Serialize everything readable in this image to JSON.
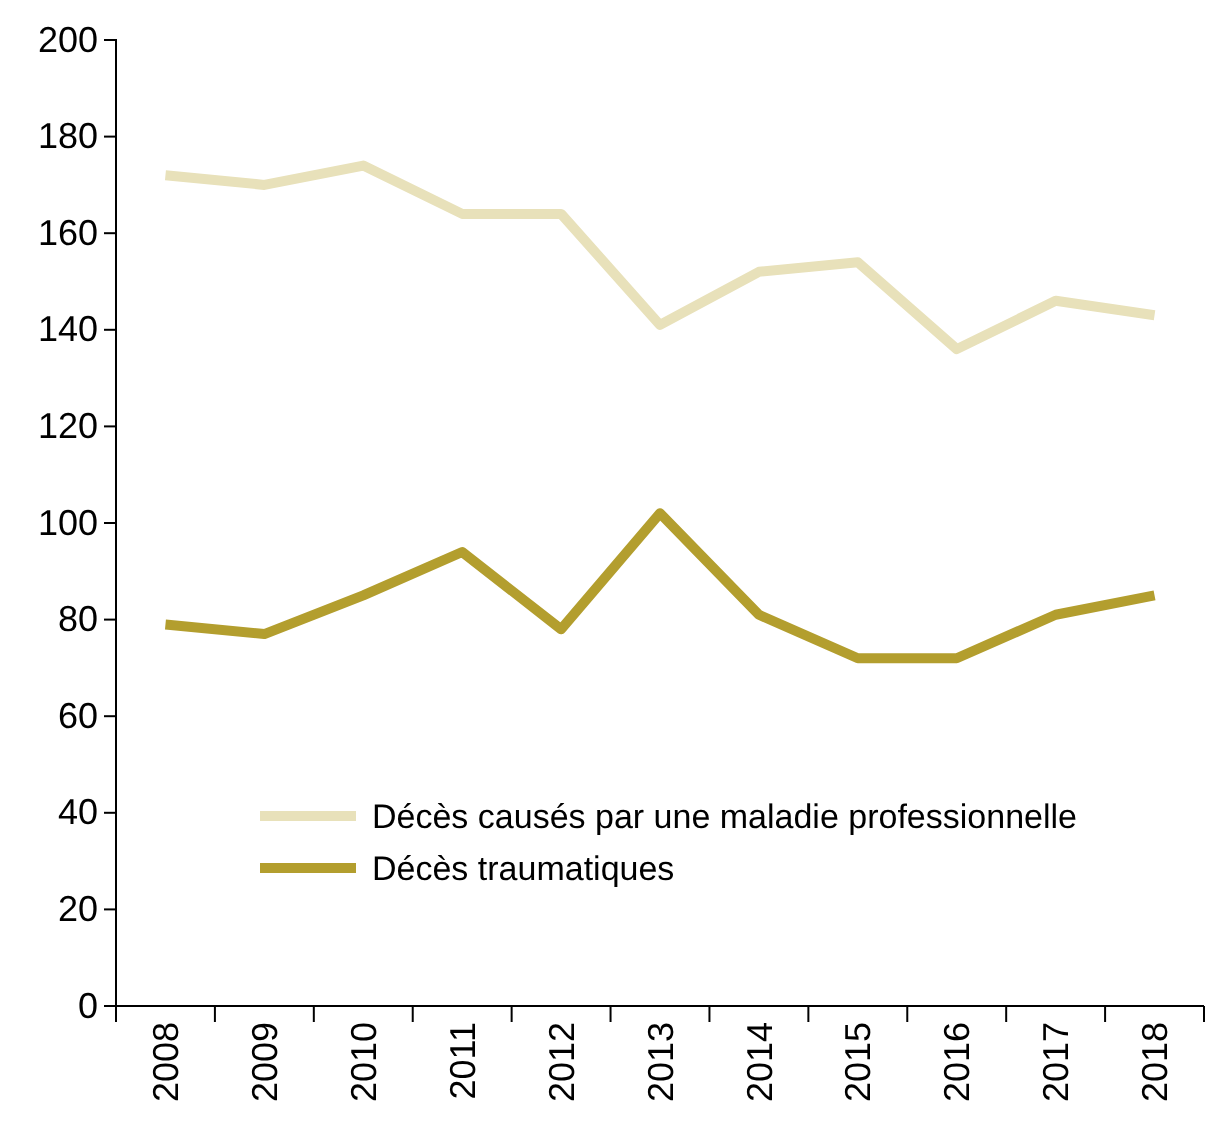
{
  "chart_data": {
    "type": "line",
    "categories": [
      "2008",
      "2009",
      "2010",
      "2011",
      "2012",
      "2013",
      "2014",
      "2015",
      "2016",
      "2017",
      "2018"
    ],
    "series": [
      {
        "name": "Décès causés par une maladie professionnelle",
        "color": "#e8e1ba",
        "values": [
          172,
          170,
          174,
          164,
          164,
          141,
          152,
          154,
          136,
          146,
          143
        ]
      },
      {
        "name": "Décès traumatiques",
        "color": "#b39e2e",
        "values": [
          79,
          77,
          85,
          94,
          78,
          102,
          81,
          72,
          72,
          81,
          85
        ]
      }
    ],
    "ylim": [
      0,
      200
    ],
    "yticks": [
      0,
      20,
      40,
      60,
      80,
      100,
      120,
      140,
      160,
      180,
      200
    ],
    "legend": "bottom left",
    "grid": false,
    "marker": "none",
    "line_style": "solid"
  }
}
